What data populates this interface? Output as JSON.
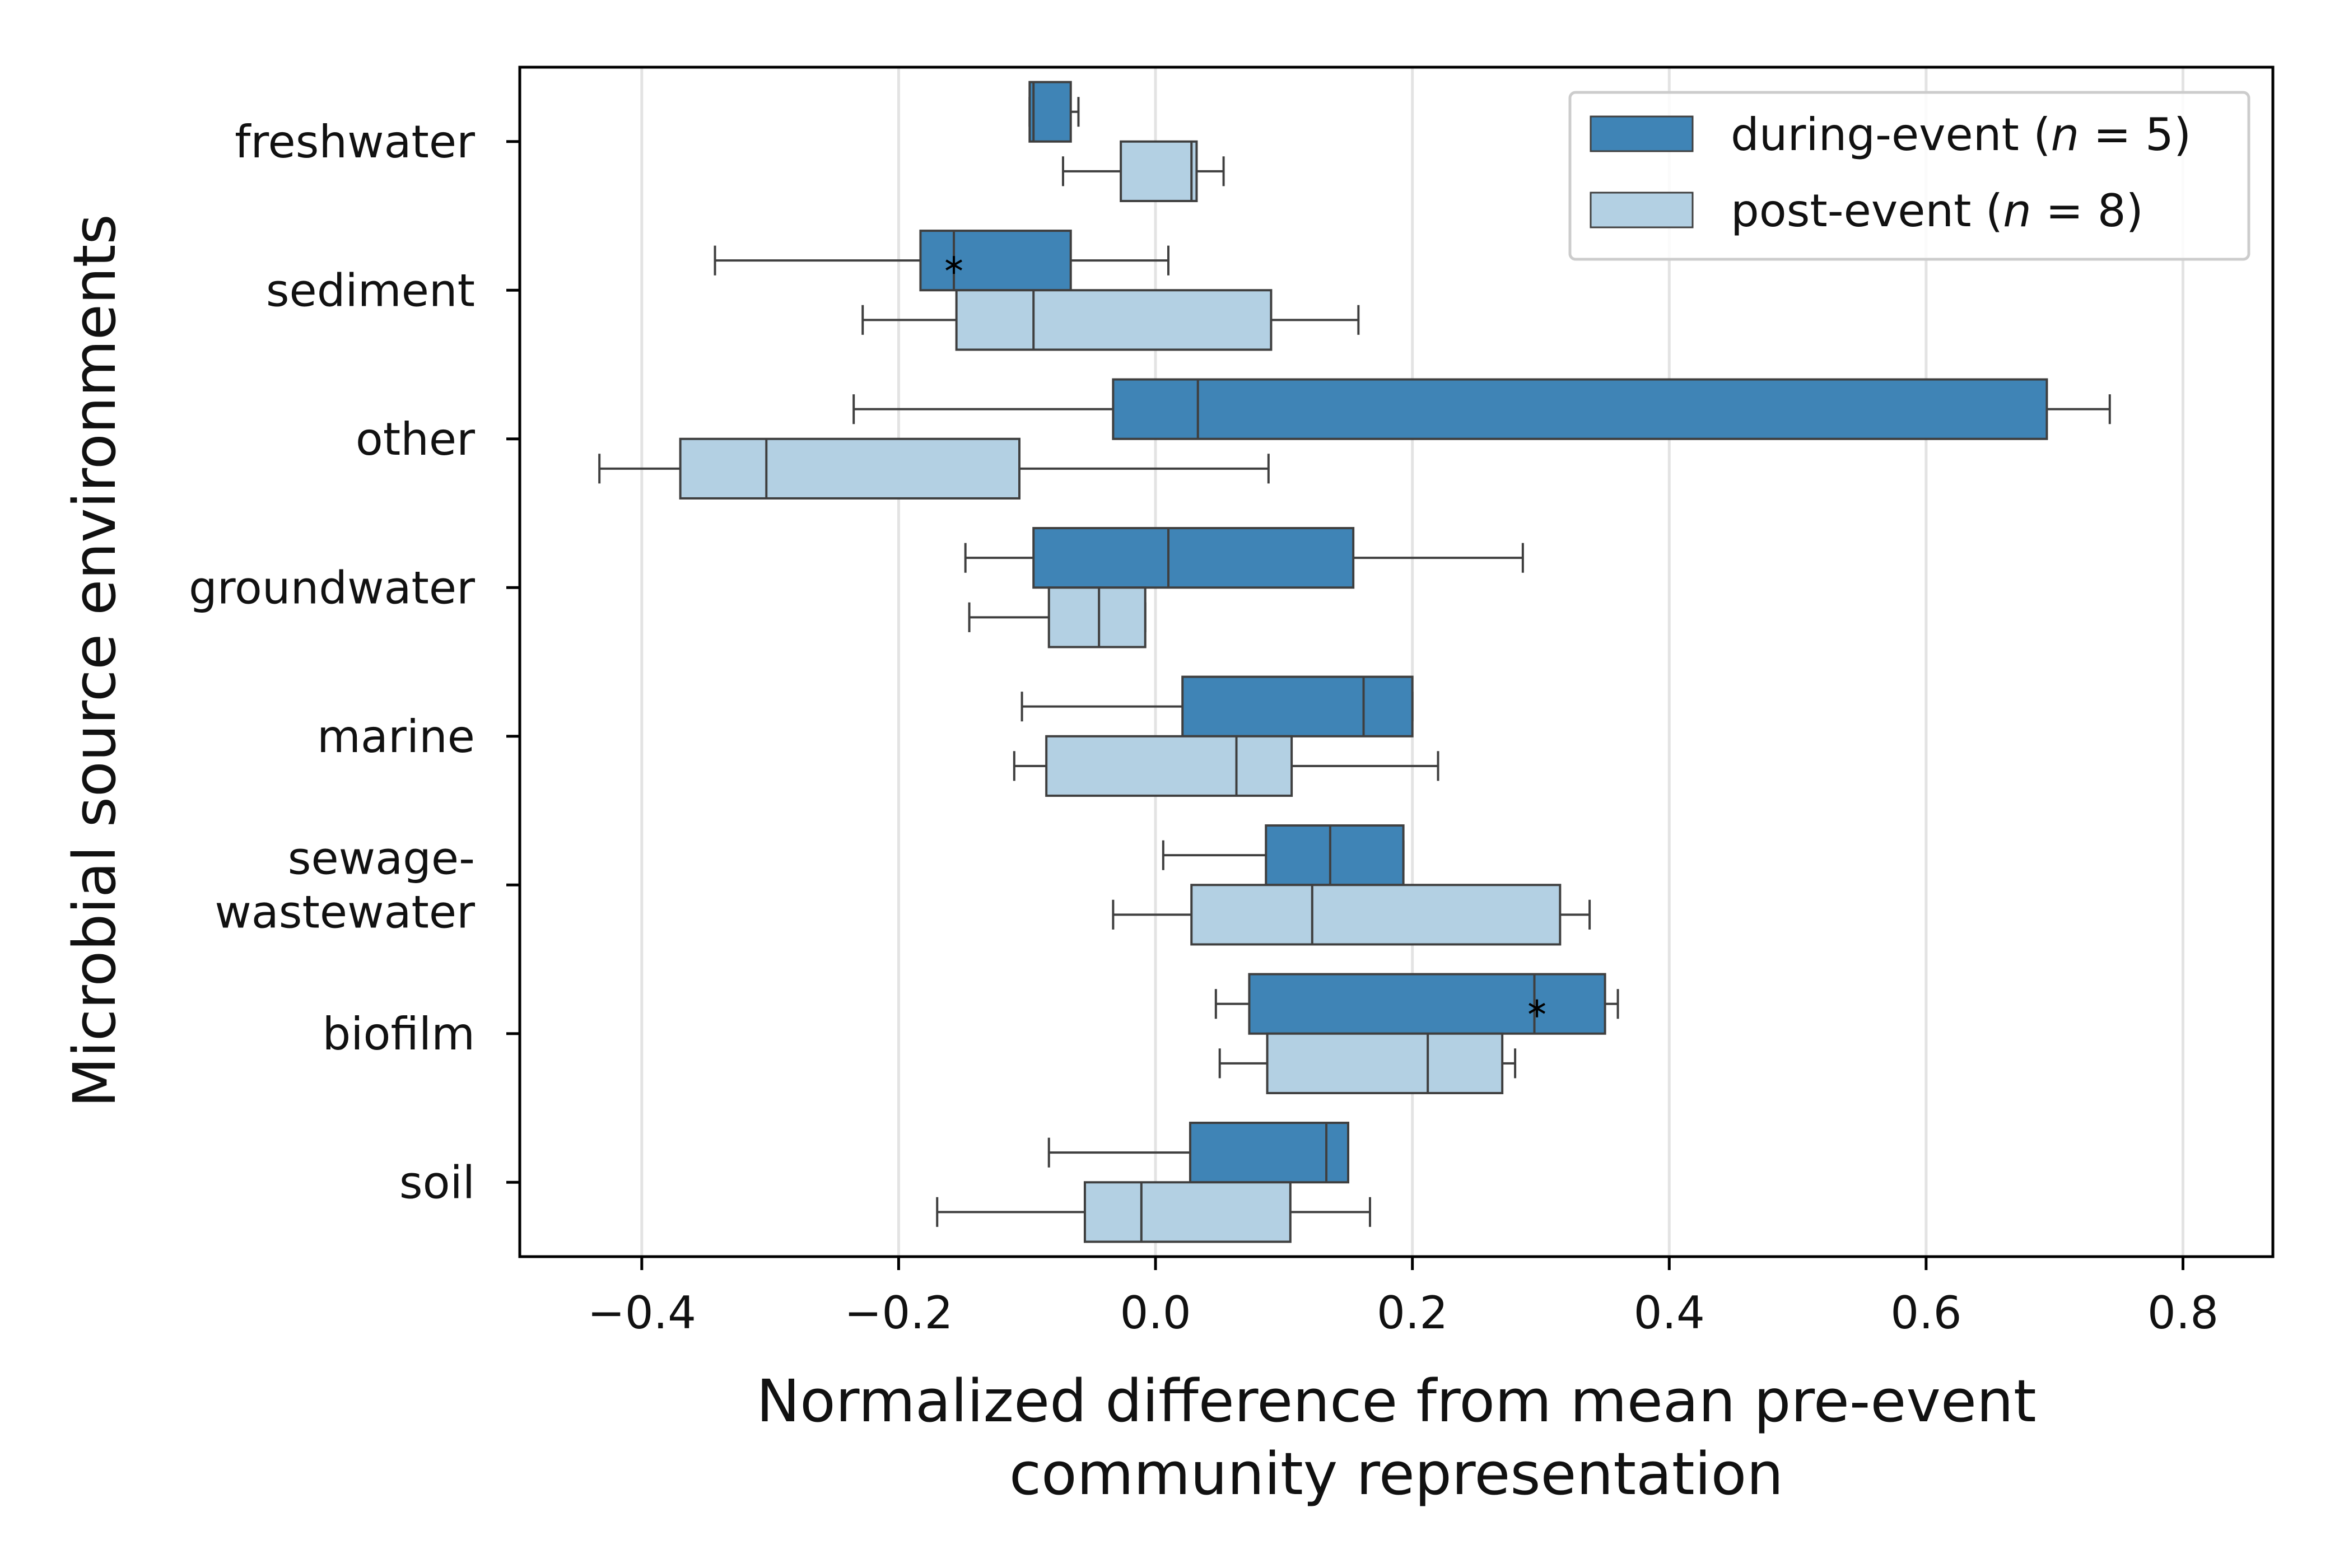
{
  "chart_data": {
    "type": "boxplot-horizontal",
    "ylabel": "Microbial source environments",
    "xlabel_lines": [
      "Normalized difference from mean pre-event",
      "community representation"
    ],
    "xlim": [
      -0.495,
      0.87
    ],
    "xticks": [
      -0.4,
      -0.2,
      0.0,
      0.2,
      0.4,
      0.6,
      0.8
    ],
    "xtick_labels": [
      "−0.4",
      "−0.2",
      "0.0",
      "0.2",
      "0.4",
      "0.6",
      "0.8"
    ],
    "grid": "vertical",
    "legend_position": "top-right",
    "categories": [
      "freshwater",
      "sediment",
      "other",
      "groundwater",
      "marine",
      "sewage-\nwastewater",
      "biofilm",
      "soil"
    ],
    "series": [
      {
        "name": "during-event (n = 5)",
        "legend_prefix": "during-event (",
        "legend_n": "n",
        "legend_suffix": " = 5)",
        "color": "#3f84b6",
        "boxes": [
          {
            "wmin": -0.098,
            "q1": -0.098,
            "median": -0.095,
            "q3": -0.066,
            "wmax": -0.06,
            "outlier": null
          },
          {
            "wmin": -0.343,
            "q1": -0.183,
            "median": -0.157,
            "q3": -0.066,
            "wmax": 0.01,
            "outlier": -0.157
          },
          {
            "wmin": -0.235,
            "q1": -0.033,
            "median": 0.033,
            "q3": 0.694,
            "wmax": 0.743,
            "outlier": null
          },
          {
            "wmin": -0.148,
            "q1": -0.095,
            "median": 0.01,
            "q3": 0.154,
            "wmax": 0.286,
            "outlier": null
          },
          {
            "wmin": -0.104,
            "q1": 0.021,
            "median": 0.162,
            "q3": 0.2,
            "wmax": 0.2,
            "outlier": null
          },
          {
            "wmin": 0.006,
            "q1": 0.086,
            "median": 0.136,
            "q3": 0.193,
            "wmax": 0.193,
            "outlier": null
          },
          {
            "wmin": 0.047,
            "q1": 0.073,
            "median": 0.295,
            "q3": 0.35,
            "wmax": 0.36,
            "outlier": 0.297
          },
          {
            "wmin": -0.083,
            "q1": 0.027,
            "median": 0.133,
            "q3": 0.15,
            "wmax": 0.15,
            "outlier": null
          }
        ]
      },
      {
        "name": "post-event (n = 8)",
        "legend_prefix": "post-event (",
        "legend_n": "n",
        "legend_suffix": " = 8)",
        "color": "#b3d0e3",
        "boxes": [
          {
            "wmin": -0.072,
            "q1": -0.027,
            "median": 0.028,
            "q3": 0.032,
            "wmax": 0.053,
            "outlier": null
          },
          {
            "wmin": -0.228,
            "q1": -0.155,
            "median": -0.095,
            "q3": 0.09,
            "wmax": 0.158,
            "outlier": null
          },
          {
            "wmin": -0.433,
            "q1": -0.37,
            "median": -0.303,
            "q3": -0.106,
            "wmax": 0.088,
            "outlier": null
          },
          {
            "wmin": -0.145,
            "q1": -0.083,
            "median": -0.044,
            "q3": -0.008,
            "wmax": -0.008,
            "outlier": null
          },
          {
            "wmin": -0.11,
            "q1": -0.085,
            "median": 0.063,
            "q3": 0.106,
            "wmax": 0.22,
            "outlier": null
          },
          {
            "wmin": -0.033,
            "q1": 0.028,
            "median": 0.122,
            "q3": 0.315,
            "wmax": 0.338,
            "outlier": null
          },
          {
            "wmin": 0.05,
            "q1": 0.087,
            "median": 0.212,
            "q3": 0.27,
            "wmax": 0.28,
            "outlier": null
          },
          {
            "wmin": -0.17,
            "q1": -0.055,
            "median": -0.011,
            "q3": 0.105,
            "wmax": 0.167,
            "outlier": null
          }
        ]
      }
    ]
  }
}
